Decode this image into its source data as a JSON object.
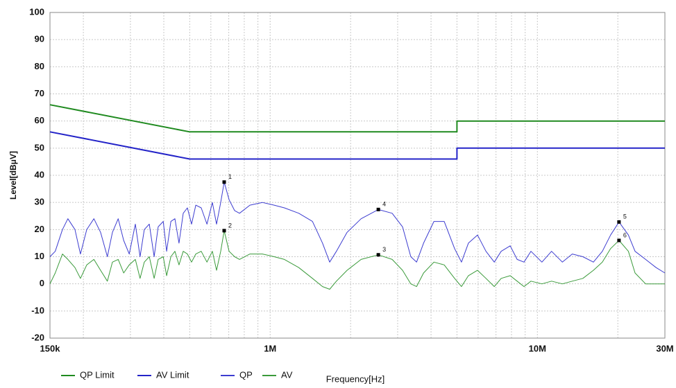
{
  "chart_data": {
    "type": "line",
    "x_label": "Frequency[Hz]",
    "y_label": "Level[dBμV]",
    "x_log": true,
    "grid": true,
    "xlim": [
      150000,
      30000000
    ],
    "ylim": [
      -20,
      100
    ],
    "xticks": [
      {
        "value": 150000,
        "label": "150k"
      },
      {
        "value": 1000000,
        "label": "1M"
      },
      {
        "value": 10000000,
        "label": "10M"
      },
      {
        "value": 30000000,
        "label": "30M"
      }
    ],
    "x_minor_grid": [
      200000,
      300000,
      400000,
      500000,
      600000,
      700000,
      800000,
      900000,
      2000000,
      3000000,
      4000000,
      5000000,
      6000000,
      7000000,
      8000000,
      9000000,
      20000000
    ],
    "yticks": [
      -20,
      -10,
      0,
      10,
      20,
      30,
      40,
      50,
      60,
      70,
      80,
      90,
      100
    ],
    "series": [
      {
        "name": "QP Limit",
        "color": "#1f8a1f",
        "line_width": 2,
        "x": [
          150000,
          500000,
          5000000,
          5000000,
          30000000
        ],
        "values": [
          66,
          56,
          56,
          60,
          60
        ]
      },
      {
        "name": "AV Limit",
        "color": "#2323c8",
        "line_width": 2,
        "x": [
          150000,
          500000,
          5000000,
          5000000,
          30000000
        ],
        "values": [
          56,
          46,
          46,
          50,
          50
        ]
      },
      {
        "name": "QP",
        "color": "#3c3cd0",
        "line_width": 1,
        "x": [
          150000,
          157000,
          167000,
          175000,
          186000,
          195000,
          206000,
          219000,
          232000,
          246000,
          257000,
          270000,
          283000,
          297000,
          313000,
          326000,
          338000,
          353000,
          368000,
          381000,
          398000,
          410000,
          425000,
          440000,
          456000,
          473000,
          490000,
          508000,
          527000,
          552000,
          580000,
          608000,
          630000,
          653000,
          673000,
          702000,
          736000,
          768000,
          840000,
          935000,
          1035000,
          1130000,
          1280000,
          1440000,
          1570000,
          1670000,
          1770000,
          1940000,
          2190000,
          2540000,
          2860000,
          3130000,
          3360000,
          3530000,
          3750000,
          4100000,
          4480000,
          4900000,
          5200000,
          5520000,
          5970000,
          6420000,
          6900000,
          7320000,
          7910000,
          8400000,
          8910000,
          9460000,
          10400000,
          11300000,
          12400000,
          13500000,
          14800000,
          16200000,
          17500000,
          18800000,
          20200000,
          21900000,
          23200000,
          25400000,
          27800000,
          30000000
        ],
        "values": [
          10,
          12,
          20,
          24,
          20,
          11,
          20,
          24,
          19,
          10,
          19,
          24,
          16,
          11,
          22,
          10,
          20,
          22,
          10,
          21,
          23,
          12,
          23,
          24,
          15,
          26,
          28,
          22,
          29,
          28,
          22,
          30,
          22,
          30,
          37.5,
          31,
          27,
          26,
          29,
          30,
          29,
          28,
          26,
          23,
          15,
          8,
          12,
          19,
          24,
          27.4,
          26,
          21,
          10,
          8,
          15,
          23,
          23,
          13,
          8,
          15,
          18,
          12,
          8,
          12,
          14,
          9,
          8,
          12,
          8,
          12,
          8,
          11,
          10,
          8,
          12,
          18,
          22.8,
          18,
          12,
          9,
          6,
          4
        ]
      },
      {
        "name": "AV",
        "color": "#3a9a3a",
        "line_width": 1,
        "x": [
          150000,
          157000,
          167000,
          175000,
          186000,
          195000,
          206000,
          219000,
          232000,
          246000,
          257000,
          270000,
          283000,
          297000,
          313000,
          326000,
          338000,
          353000,
          368000,
          381000,
          398000,
          410000,
          425000,
          440000,
          456000,
          473000,
          490000,
          508000,
          527000,
          552000,
          580000,
          608000,
          630000,
          653000,
          673000,
          702000,
          736000,
          768000,
          840000,
          935000,
          1035000,
          1130000,
          1280000,
          1440000,
          1570000,
          1670000,
          1770000,
          1940000,
          2190000,
          2540000,
          2860000,
          3130000,
          3360000,
          3530000,
          3750000,
          4100000,
          4480000,
          4900000,
          5200000,
          5520000,
          5970000,
          6420000,
          6900000,
          7320000,
          7910000,
          8400000,
          8910000,
          9460000,
          10400000,
          11300000,
          12400000,
          13500000,
          14800000,
          16200000,
          17500000,
          18800000,
          20200000,
          21900000,
          23200000,
          25400000,
          27800000,
          30000000
        ],
        "values": [
          0,
          4,
          11,
          9,
          6,
          2,
          7,
          9,
          5,
          1,
          8,
          9,
          4,
          7,
          9,
          2,
          8,
          10,
          2,
          9,
          10,
          3,
          10,
          12,
          7,
          12,
          11,
          8,
          11,
          12,
          8,
          12,
          5,
          12,
          19.6,
          12,
          10,
          9,
          11,
          11,
          10,
          9,
          6,
          2,
          -1,
          -2,
          1,
          5,
          9,
          10.7,
          9,
          5,
          0,
          -1,
          4,
          8,
          7,
          2,
          -1,
          3,
          5,
          2,
          -1,
          2,
          3,
          1,
          -1,
          1,
          0,
          1,
          0,
          1,
          2,
          5,
          8,
          13,
          16,
          12,
          4,
          0,
          0,
          0
        ]
      }
    ],
    "markers": [
      {
        "label": "1",
        "x": 673000,
        "value": 37.5
      },
      {
        "label": "2",
        "x": 673000,
        "value": 19.6
      },
      {
        "label": "3",
        "x": 2540000,
        "value": 10.7
      },
      {
        "label": "4",
        "x": 2540000,
        "value": 27.4
      },
      {
        "label": "5",
        "x": 20200000,
        "value": 22.8
      },
      {
        "label": "6",
        "x": 20200000,
        "value": 16
      }
    ]
  }
}
